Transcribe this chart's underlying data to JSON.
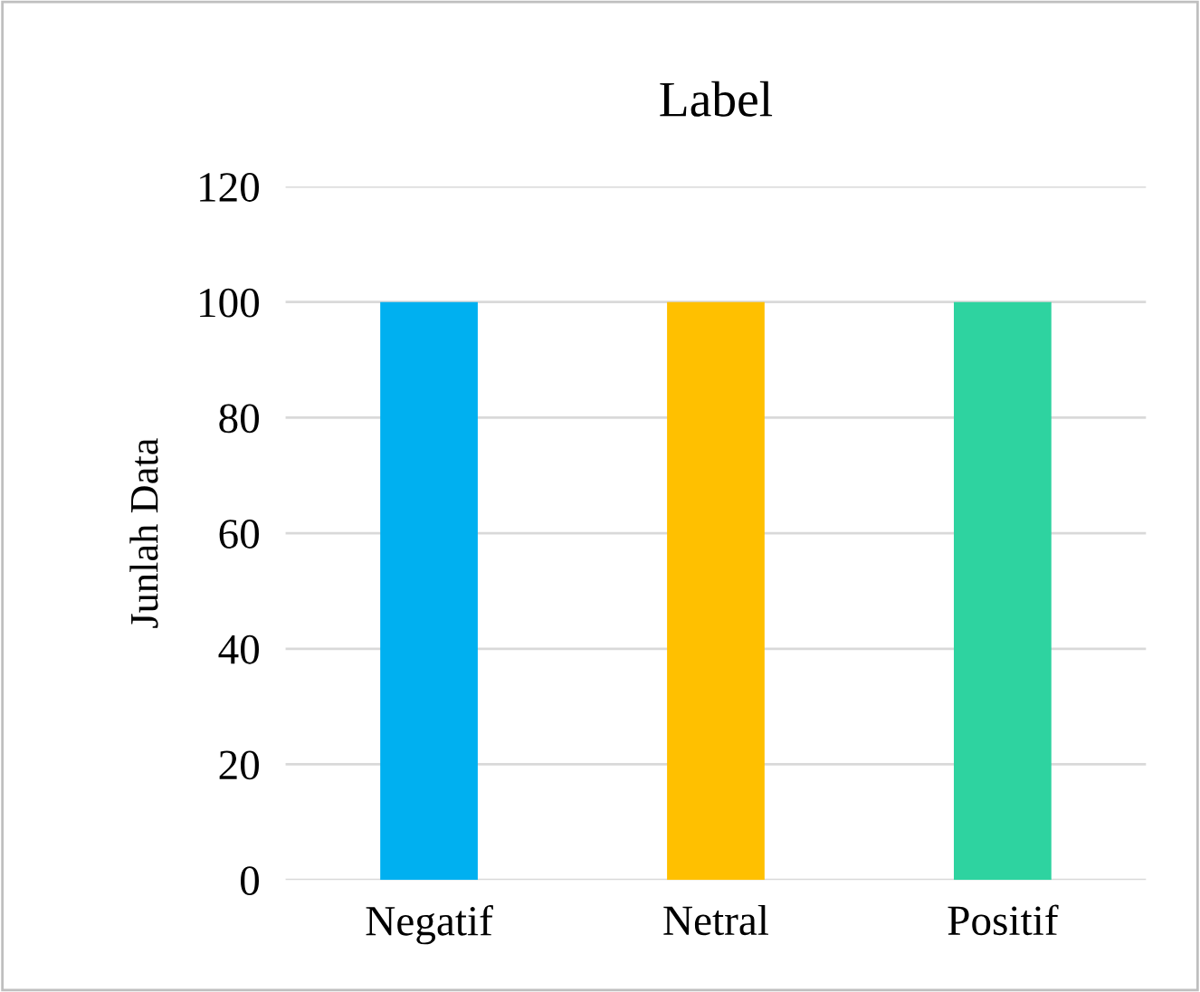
{
  "chart_data": {
    "type": "bar",
    "title": "Label",
    "ylabel": "Junlah Data",
    "categories": [
      "Negatif",
      "Netral",
      "Positif"
    ],
    "values": [
      100,
      100,
      100
    ],
    "colors": [
      "#00b0f0",
      "#ffc000",
      "#2ed3a0"
    ],
    "ylim": [
      0,
      120
    ],
    "yticks": [
      0,
      20,
      40,
      60,
      80,
      100,
      120
    ],
    "grid": "y",
    "legend": false
  }
}
